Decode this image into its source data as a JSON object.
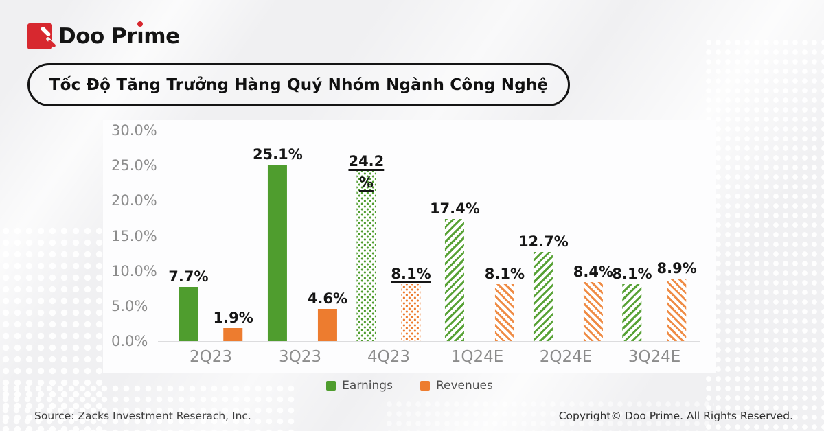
{
  "brand": {
    "name": "Doo Prime"
  },
  "title": "Tốc Độ Tăng Trưởng Hàng Quý Nhóm Ngành Công Nghệ",
  "chart_data": {
    "type": "bar",
    "title": "Tốc Độ Tăng Trưởng Hàng Quý Nhóm Ngành Công Nghệ",
    "categories": [
      "2Q23",
      "3Q23",
      "4Q23",
      "1Q24E",
      "2Q24E",
      "3Q24E"
    ],
    "series": [
      {
        "name": "Earnings",
        "color": "#4f9d2e",
        "values": [
          7.7,
          25.1,
          24.2,
          17.4,
          12.7,
          8.1
        ],
        "bar_styles": [
          "solid",
          "solid",
          "dots-pat",
          "stripes",
          "stripes",
          "stripes"
        ]
      },
      {
        "name": "Revenues",
        "color": "#ed7c2f",
        "values": [
          1.9,
          4.6,
          8.1,
          8.1,
          8.4,
          8.9
        ],
        "bar_styles": [
          "solid",
          "solid",
          "dots-pat",
          "stripes",
          "stripes",
          "stripes"
        ]
      }
    ],
    "data_labels": [
      [
        "7.7%",
        "25.1%",
        "24.2 %",
        "17.4%",
        "12.7%",
        "8.1%"
      ],
      [
        "1.9%",
        "4.6%",
        "8.1%",
        "8.1%",
        "8.4%",
        "8.9%"
      ]
    ],
    "highlight_category": "4Q23",
    "y_ticks": [
      "30.0%",
      "25.0%",
      "20.0%",
      "15.0%",
      "10.0%",
      "5.0%",
      "0.0%"
    ],
    "ylim": [
      0,
      30
    ],
    "grid": "off",
    "legend": [
      "Earnings",
      "Revenues"
    ],
    "legend_position": "bottom"
  },
  "footer": {
    "source": "Source: Zacks Investment Reserach, Inc.",
    "copyright": "Copyright© Doo Prime. All Rights Reserved."
  }
}
